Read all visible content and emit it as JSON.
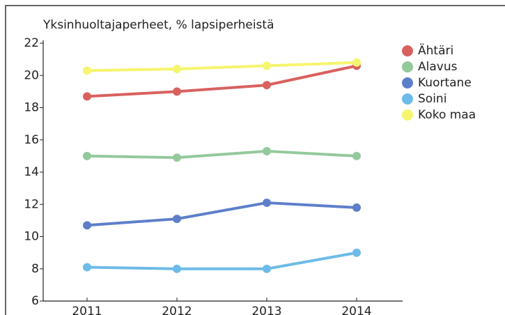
{
  "chart_data": {
    "type": "line",
    "title": "Yksinhuoltajaperheet, % lapsiperheistä",
    "categories": [
      "2011",
      "2012",
      "2013",
      "2014"
    ],
    "series": [
      {
        "name": "Ähtäri",
        "color": "#d9615f",
        "values": [
          18.7,
          19.0,
          19.4,
          20.6
        ]
      },
      {
        "name": "Alavus",
        "color": "#93c99b",
        "values": [
          15.0,
          14.9,
          15.3,
          15.0
        ]
      },
      {
        "name": "Kuortane",
        "color": "#5d7fca",
        "values": [
          10.7,
          11.1,
          12.1,
          11.8
        ]
      },
      {
        "name": "Soini",
        "color": "#6dbbe8",
        "values": [
          8.1,
          8.0,
          8.0,
          9.0
        ]
      },
      {
        "name": "Koko maa",
        "color": "#f6f56e",
        "values": [
          20.3,
          20.4,
          20.6,
          20.8
        ]
      }
    ],
    "ylim": [
      6,
      22
    ],
    "yticks": [
      6,
      8,
      10,
      12,
      14,
      16,
      18,
      20,
      22
    ],
    "grid": false,
    "legend": "right"
  }
}
